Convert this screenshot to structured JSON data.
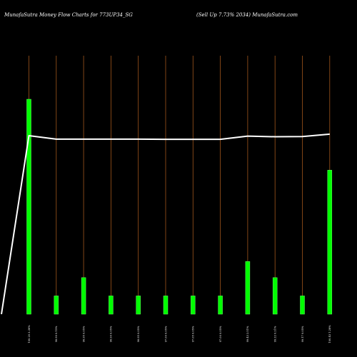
{
  "chart_data": {
    "type": "bar",
    "title_left": "MunafaSutra  Money Flow  Charts for 773UP34_SG",
    "title_right": "(Sell Up 7.73% 2034) MunafaSutra.com",
    "categories": [
      "100.20 3.36%",
      "96.90 0.15%",
      "96.95 0.05%",
      "96.90 0.05%",
      "96.95 0.05%",
      "97.00 0.05%",
      "97.05 0.05%",
      "97.00 0.05%",
      "99.43 2.51%",
      "99.22 0.21%",
      "99.17 0.05%",
      "100.43 1.28%"
    ],
    "bar_values": [
      100,
      8.5,
      17,
      8.5,
      8.5,
      8.5,
      8.5,
      8.5,
      24.5,
      17,
      8.5,
      67
    ],
    "line_values": [
      0,
      82.3,
      80.7,
      80.7,
      80.7,
      80.7,
      80.6,
      80.6,
      80.6,
      82.1,
      81.8,
      81.9,
      83.0
    ],
    "ylim": [
      0,
      100
    ],
    "colors": {
      "background": "#000000",
      "bar": "#00ff00",
      "bar_edge": "#66ff66",
      "gridline": "#a0561c",
      "line": "#ffffff",
      "text": "#ffffff"
    }
  }
}
